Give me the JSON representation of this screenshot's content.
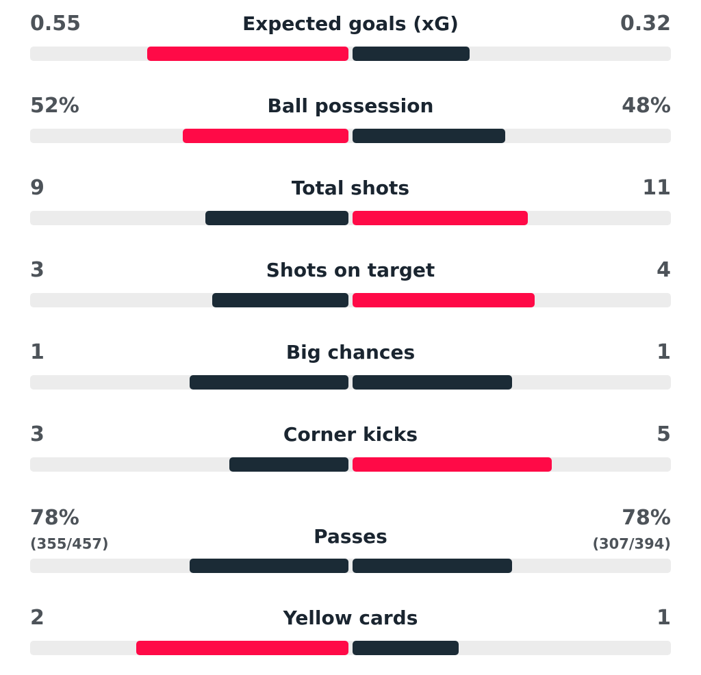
{
  "stats": [
    {
      "name": "Expected goals (xG)",
      "home": 0.55,
      "away": 0.32
    },
    {
      "name": "Ball possession",
      "home": {
        "value": 52,
        "label": "52%"
      },
      "away": {
        "value": 48,
        "label": "48%"
      }
    },
    {
      "name": "Total shots",
      "home": 9,
      "away": 11
    },
    {
      "name": "Shots on target",
      "home": 3,
      "away": 4
    },
    {
      "name": "Big chances",
      "home": 1,
      "away": 1
    },
    {
      "name": "Corner kicks",
      "home": 3,
      "away": 5
    },
    {
      "name": "Passes",
      "home": {
        "value": 78,
        "label": "78%",
        "detail": "(355/457)"
      },
      "away": {
        "value": 78,
        "label": "78%",
        "detail": "(307/394)"
      }
    },
    {
      "name": "Yellow cards",
      "home": 2,
      "away": 1
    }
  ],
  "colors": {
    "leader": "#ff0a47",
    "other": "#1b2b36"
  }
}
